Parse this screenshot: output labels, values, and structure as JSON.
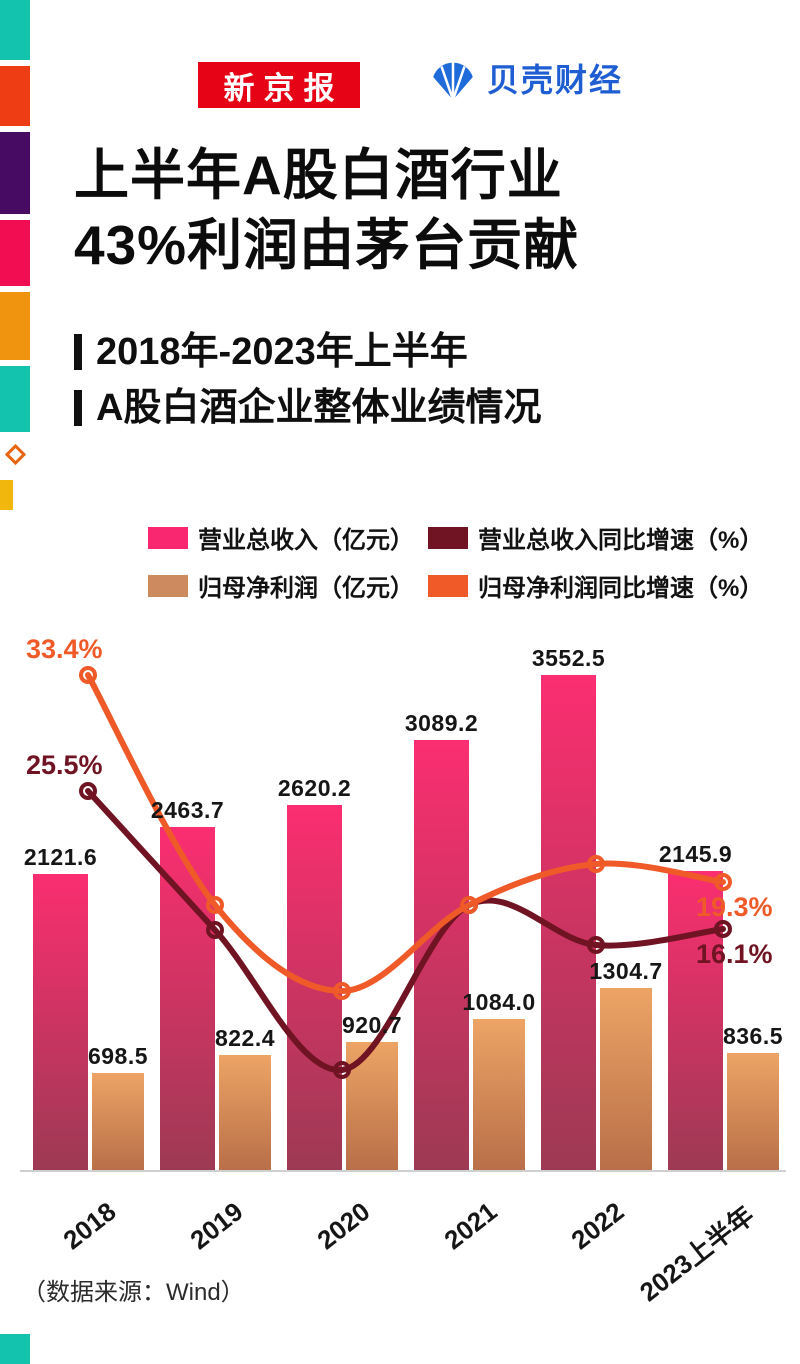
{
  "brand": {
    "xinjingbao": "新京报",
    "beike": "贝壳财经"
  },
  "title": {
    "line1": "上半年A股白酒行业",
    "line2": "43%利润由茅台贡献"
  },
  "subtitle": {
    "line1": "2018年-2023年上半年",
    "line2": "A股白酒企业整体业绩情况"
  },
  "legend": {
    "items": [
      {
        "label": "营业总收入（亿元）",
        "color": "#f8276f"
      },
      {
        "label": "营业总收入同比增速（%）",
        "color": "#701322"
      },
      {
        "label": "归母净利润（亿元）",
        "color": "#cc8a5e"
      },
      {
        "label": "归母净利润同比增速（%）",
        "color": "#ef5a28"
      }
    ]
  },
  "side_strip": {
    "colors": [
      "#14c3ae",
      "#ee3d14",
      "#470b63",
      "#f20c52",
      "#f0930f",
      "#14c3ae"
    ],
    "diamond_color": "#e8650f",
    "yellow_color": "#f2b70d",
    "bottom_corner_color": "#14c3ae"
  },
  "chart_data": {
    "type": "bar+line combo",
    "categories": [
      "2018",
      "2019",
      "2020",
      "2021",
      "2022",
      "2023上半年"
    ],
    "grid": false,
    "legend_position": "top",
    "bar_series": [
      {
        "name": "营业总收入（亿元）",
        "values": [
          2121.6,
          2463.7,
          2620.2,
          3089.2,
          3552.5,
          2145.9
        ],
        "labels": [
          "2121.6",
          "2463.7",
          "2620.2",
          "3089.2",
          "3552.5",
          "2145.9"
        ],
        "color_top": "#fb2e71",
        "color_bottom": "#9d3a53"
      },
      {
        "name": "归母净利润（亿元）",
        "values": [
          698.5,
          822.4,
          920.7,
          1084.0,
          1304.7,
          836.5
        ],
        "labels": [
          "698.5",
          "822.4",
          "920.7",
          "1084.0",
          "1304.7",
          "836.5"
        ],
        "color_top": "#eda465",
        "color_bottom": "#b96f48"
      }
    ],
    "line_series": [
      {
        "name": "营业总收入同比增速（%）",
        "color": "#701322",
        "values": [
          25.5,
          16.0,
          6.5,
          17.7,
          15.0,
          16.1
        ],
        "labeled_points": {
          "first": "25.5%",
          "last": "16.1%"
        },
        "note": "only first and last points carry labels in the image; middle values estimated from curve position"
      },
      {
        "name": "归母净利润同比增速（%）",
        "color": "#ef5a28",
        "values": [
          33.4,
          17.7,
          11.9,
          17.7,
          20.5,
          19.3
        ],
        "labeled_points": {
          "first": "33.4%",
          "last": "19.3%"
        },
        "note": "only first and last points carry labels in the image; middle values estimated from curve position"
      }
    ]
  },
  "footer": {
    "source": "（数据来源：Wind）"
  }
}
